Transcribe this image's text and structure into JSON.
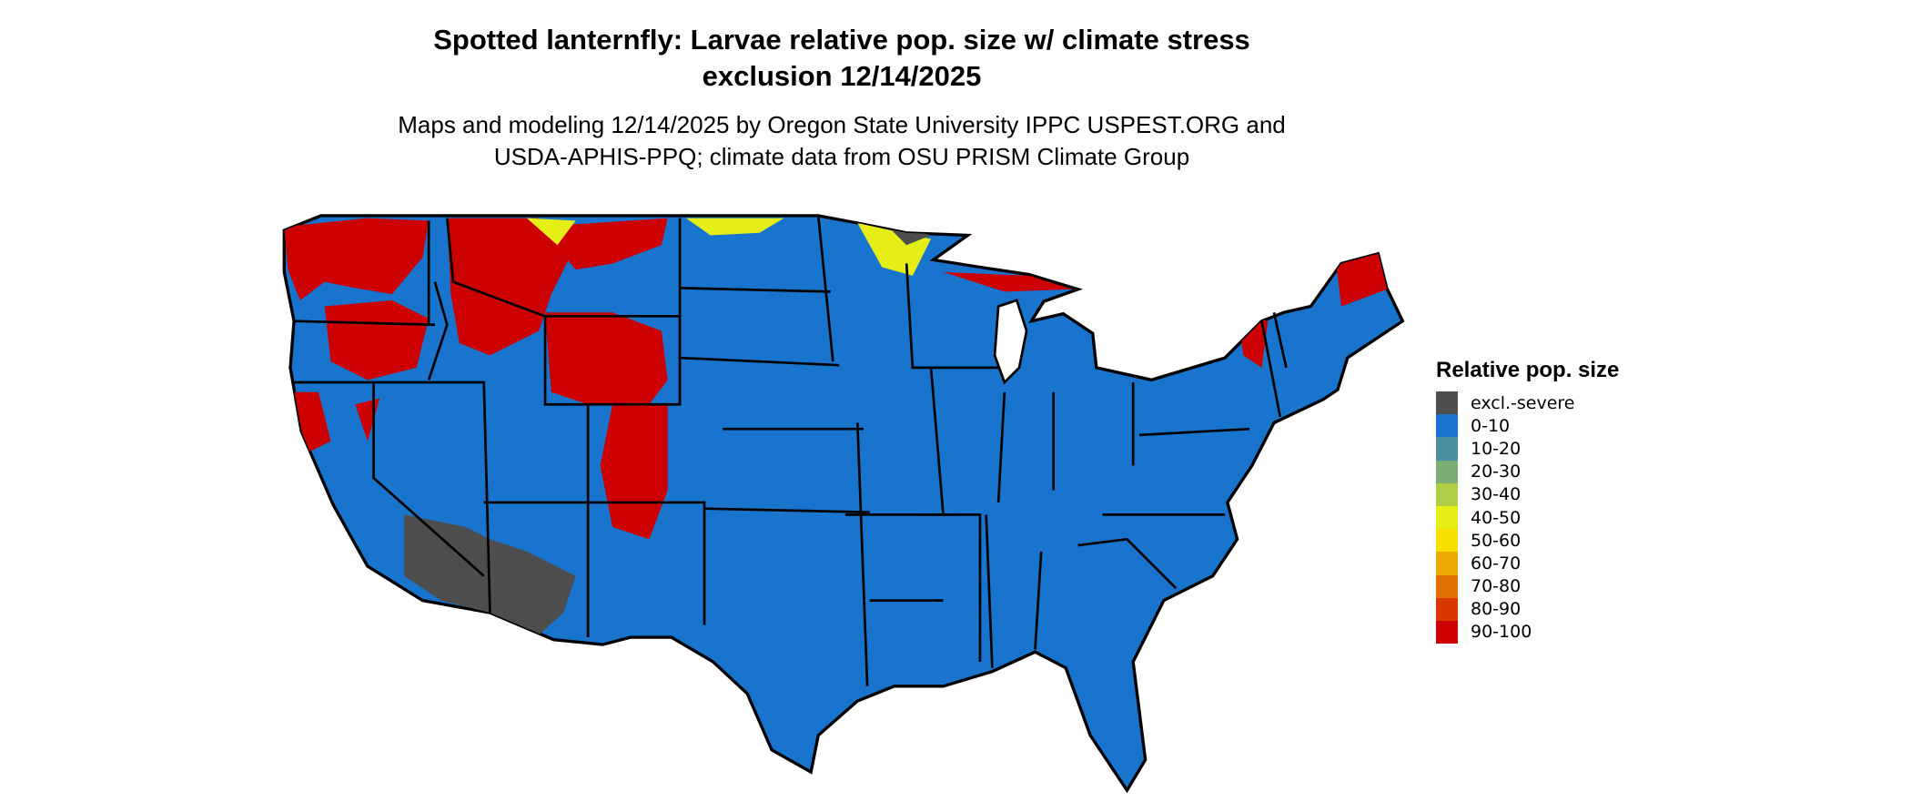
{
  "title_line1": "Spotted lanternfly: Larvae relative pop. size w/ climate stress",
  "title_line2": "exclusion 12/14/2025",
  "subtitle_line1": "Maps and modeling 12/14/2025 by Oregon State University IPPC USPEST.ORG and",
  "subtitle_line2": "USDA-APHIS-PPQ; climate data from OSU PRISM Climate Group",
  "legend": {
    "title": "Relative pop. size",
    "items": [
      {
        "label": "excl.-severe",
        "color": "#4d4d4d"
      },
      {
        "label": "0-10",
        "color": "#1874cd"
      },
      {
        "label": "10-20",
        "color": "#4a8fa0"
      },
      {
        "label": "20-30",
        "color": "#7aae72"
      },
      {
        "label": "30-40",
        "color": "#b0cf46"
      },
      {
        "label": "40-50",
        "color": "#e5ef17"
      },
      {
        "label": "50-60",
        "color": "#f7e000"
      },
      {
        "label": "60-70",
        "color": "#eda900"
      },
      {
        "label": "70-80",
        "color": "#e27200"
      },
      {
        "label": "80-90",
        "color": "#d93800"
      },
      {
        "label": "90-100",
        "color": "#cc0000"
      }
    ]
  },
  "map": {
    "region": "Contiguous United States",
    "base_color": "#1874cd",
    "high_color": "#cc0000",
    "excluded_color": "#4d4d4d",
    "border_color": "#000000"
  }
}
